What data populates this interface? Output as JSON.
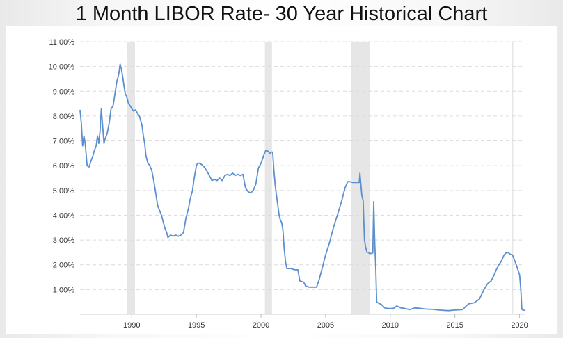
{
  "title": "1 Month LIBOR Rate- 30 Year Historical Chart",
  "chart_data": {
    "type": "line",
    "title": "1 Month LIBOR Rate- 30 Year Historical Chart",
    "xlabel": "",
    "ylabel": "",
    "xlim": [
      1986.0,
      2020.4
    ],
    "ylim": [
      0.0,
      11.0
    ],
    "grid": true,
    "y_ticks": [
      "11.00%",
      "10.00%",
      "9.00%",
      "8.00%",
      "7.00%",
      "6.00%",
      "5.00%",
      "4.00%",
      "3.00%",
      "2.00%",
      "1.00%"
    ],
    "x_ticks": [
      "1990",
      "1995",
      "2000",
      "2005",
      "2010",
      "2015",
      "2020"
    ],
    "recessions": [
      [
        1989.65,
        1990.25
      ],
      [
        2000.3,
        2000.85
      ],
      [
        2006.95,
        2008.4
      ],
      [
        2019.4,
        2019.5
      ]
    ],
    "colors": {
      "line": "#5b8fd0",
      "recession": "#e6e6e6",
      "grid": "#dcdcdc"
    },
    "series": [
      {
        "points": [
          [
            1986.0,
            8.25
          ],
          [
            1986.1,
            7.7
          ],
          [
            1986.2,
            6.8
          ],
          [
            1986.3,
            7.2
          ],
          [
            1986.4,
            6.9
          ],
          [
            1986.55,
            6.0
          ],
          [
            1986.7,
            5.95
          ],
          [
            1986.85,
            6.2
          ],
          [
            1987.0,
            6.4
          ],
          [
            1987.1,
            6.6
          ],
          [
            1987.25,
            6.8
          ],
          [
            1987.35,
            7.2
          ],
          [
            1987.45,
            6.9
          ],
          [
            1987.55,
            7.4
          ],
          [
            1987.65,
            8.3
          ],
          [
            1987.75,
            7.6
          ],
          [
            1987.85,
            6.9
          ],
          [
            1987.95,
            7.1
          ],
          [
            1988.1,
            7.3
          ],
          [
            1988.25,
            7.7
          ],
          [
            1988.4,
            8.3
          ],
          [
            1988.55,
            8.4
          ],
          [
            1988.7,
            8.9
          ],
          [
            1988.85,
            9.4
          ],
          [
            1989.0,
            9.7
          ],
          [
            1989.1,
            10.1
          ],
          [
            1989.2,
            9.9
          ],
          [
            1989.3,
            9.6
          ],
          [
            1989.4,
            9.2
          ],
          [
            1989.5,
            8.9
          ],
          [
            1989.6,
            8.8
          ],
          [
            1989.75,
            8.5
          ],
          [
            1989.9,
            8.4
          ],
          [
            1990.0,
            8.3
          ],
          [
            1990.15,
            8.2
          ],
          [
            1990.3,
            8.25
          ],
          [
            1990.45,
            8.1
          ],
          [
            1990.6,
            8.0
          ],
          [
            1990.7,
            7.8
          ],
          [
            1990.8,
            7.6
          ],
          [
            1990.9,
            7.2
          ],
          [
            1991.0,
            6.9
          ],
          [
            1991.1,
            6.4
          ],
          [
            1991.25,
            6.1
          ],
          [
            1991.4,
            6.0
          ],
          [
            1991.55,
            5.8
          ],
          [
            1991.7,
            5.4
          ],
          [
            1991.85,
            4.9
          ],
          [
            1992.0,
            4.4
          ],
          [
            1992.15,
            4.2
          ],
          [
            1992.3,
            4.0
          ],
          [
            1992.45,
            3.7
          ],
          [
            1992.55,
            3.5
          ],
          [
            1992.7,
            3.3
          ],
          [
            1992.8,
            3.1
          ],
          [
            1992.9,
            3.15
          ],
          [
            1993.0,
            3.2
          ],
          [
            1993.2,
            3.15
          ],
          [
            1993.4,
            3.2
          ],
          [
            1993.6,
            3.15
          ],
          [
            1993.8,
            3.2
          ],
          [
            1994.0,
            3.3
          ],
          [
            1994.1,
            3.6
          ],
          [
            1994.2,
            3.9
          ],
          [
            1994.3,
            4.1
          ],
          [
            1994.4,
            4.3
          ],
          [
            1994.5,
            4.6
          ],
          [
            1994.6,
            4.8
          ],
          [
            1994.7,
            5.0
          ],
          [
            1994.8,
            5.4
          ],
          [
            1994.9,
            5.7
          ],
          [
            1995.0,
            6.0
          ],
          [
            1995.1,
            6.1
          ],
          [
            1995.2,
            6.1
          ],
          [
            1995.4,
            6.05
          ],
          [
            1995.6,
            5.95
          ],
          [
            1995.8,
            5.8
          ],
          [
            1996.0,
            5.6
          ],
          [
            1996.2,
            5.4
          ],
          [
            1996.4,
            5.45
          ],
          [
            1996.6,
            5.4
          ],
          [
            1996.8,
            5.5
          ],
          [
            1997.0,
            5.4
          ],
          [
            1997.2,
            5.6
          ],
          [
            1997.4,
            5.65
          ],
          [
            1997.6,
            5.6
          ],
          [
            1997.8,
            5.7
          ],
          [
            1998.0,
            5.6
          ],
          [
            1998.2,
            5.65
          ],
          [
            1998.4,
            5.6
          ],
          [
            1998.6,
            5.65
          ],
          [
            1998.8,
            5.1
          ],
          [
            1999.0,
            4.95
          ],
          [
            1999.2,
            4.9
          ],
          [
            1999.4,
            5.0
          ],
          [
            1999.6,
            5.25
          ],
          [
            1999.8,
            5.9
          ],
          [
            2000.0,
            6.1
          ],
          [
            2000.2,
            6.4
          ],
          [
            2000.35,
            6.6
          ],
          [
            2000.5,
            6.6
          ],
          [
            2000.6,
            6.55
          ],
          [
            2000.7,
            6.5
          ],
          [
            2000.8,
            6.55
          ],
          [
            2000.9,
            6.55
          ],
          [
            2001.0,
            5.8
          ],
          [
            2001.1,
            5.2
          ],
          [
            2001.2,
            4.8
          ],
          [
            2001.3,
            4.4
          ],
          [
            2001.4,
            4.0
          ],
          [
            2001.5,
            3.8
          ],
          [
            2001.6,
            3.7
          ],
          [
            2001.7,
            3.4
          ],
          [
            2001.8,
            2.6
          ],
          [
            2001.9,
            2.1
          ],
          [
            2002.0,
            1.85
          ],
          [
            2002.3,
            1.85
          ],
          [
            2002.6,
            1.8
          ],
          [
            2002.85,
            1.8
          ],
          [
            2003.0,
            1.35
          ],
          [
            2003.3,
            1.3
          ],
          [
            2003.45,
            1.15
          ],
          [
            2003.7,
            1.1
          ],
          [
            2004.0,
            1.1
          ],
          [
            2004.3,
            1.1
          ],
          [
            2004.5,
            1.4
          ],
          [
            2004.7,
            1.8
          ],
          [
            2005.0,
            2.4
          ],
          [
            2005.3,
            2.9
          ],
          [
            2005.6,
            3.5
          ],
          [
            2005.9,
            4.0
          ],
          [
            2006.2,
            4.5
          ],
          [
            2006.5,
            5.1
          ],
          [
            2006.7,
            5.35
          ],
          [
            2006.9,
            5.35
          ],
          [
            2007.1,
            5.32
          ],
          [
            2007.3,
            5.32
          ],
          [
            2007.5,
            5.32
          ],
          [
            2007.6,
            5.32
          ],
          [
            2007.65,
            5.7
          ],
          [
            2007.7,
            5.4
          ],
          [
            2007.8,
            4.8
          ],
          [
            2007.9,
            4.6
          ],
          [
            2008.0,
            3.0
          ],
          [
            2008.1,
            2.7
          ],
          [
            2008.2,
            2.5
          ],
          [
            2008.3,
            2.5
          ],
          [
            2008.4,
            2.45
          ],
          [
            2008.55,
            2.46
          ],
          [
            2008.65,
            2.48
          ],
          [
            2008.72,
            4.55
          ],
          [
            2008.8,
            2.9
          ],
          [
            2008.88,
            1.8
          ],
          [
            2008.95,
            0.5
          ],
          [
            2009.1,
            0.45
          ],
          [
            2009.3,
            0.4
          ],
          [
            2009.6,
            0.25
          ],
          [
            2010.0,
            0.23
          ],
          [
            2010.3,
            0.25
          ],
          [
            2010.5,
            0.34
          ],
          [
            2010.8,
            0.26
          ],
          [
            2011.0,
            0.25
          ],
          [
            2011.5,
            0.19
          ],
          [
            2011.9,
            0.26
          ],
          [
            2012.3,
            0.24
          ],
          [
            2012.8,
            0.21
          ],
          [
            2013.3,
            0.2
          ],
          [
            2013.8,
            0.17
          ],
          [
            2014.5,
            0.15
          ],
          [
            2015.0,
            0.17
          ],
          [
            2015.6,
            0.19
          ],
          [
            2015.9,
            0.35
          ],
          [
            2016.1,
            0.43
          ],
          [
            2016.5,
            0.47
          ],
          [
            2016.9,
            0.62
          ],
          [
            2017.2,
            0.95
          ],
          [
            2017.5,
            1.22
          ],
          [
            2017.8,
            1.35
          ],
          [
            2018.0,
            1.55
          ],
          [
            2018.2,
            1.8
          ],
          [
            2018.4,
            2.0
          ],
          [
            2018.6,
            2.15
          ],
          [
            2018.8,
            2.4
          ],
          [
            2019.0,
            2.5
          ],
          [
            2019.15,
            2.48
          ],
          [
            2019.3,
            2.42
          ],
          [
            2019.45,
            2.4
          ],
          [
            2019.6,
            2.2
          ],
          [
            2019.75,
            2.0
          ],
          [
            2019.9,
            1.75
          ],
          [
            2020.0,
            1.6
          ],
          [
            2020.1,
            1.0
          ],
          [
            2020.18,
            0.2
          ],
          [
            2020.28,
            0.17
          ],
          [
            2020.4,
            0.16
          ]
        ]
      }
    ]
  }
}
